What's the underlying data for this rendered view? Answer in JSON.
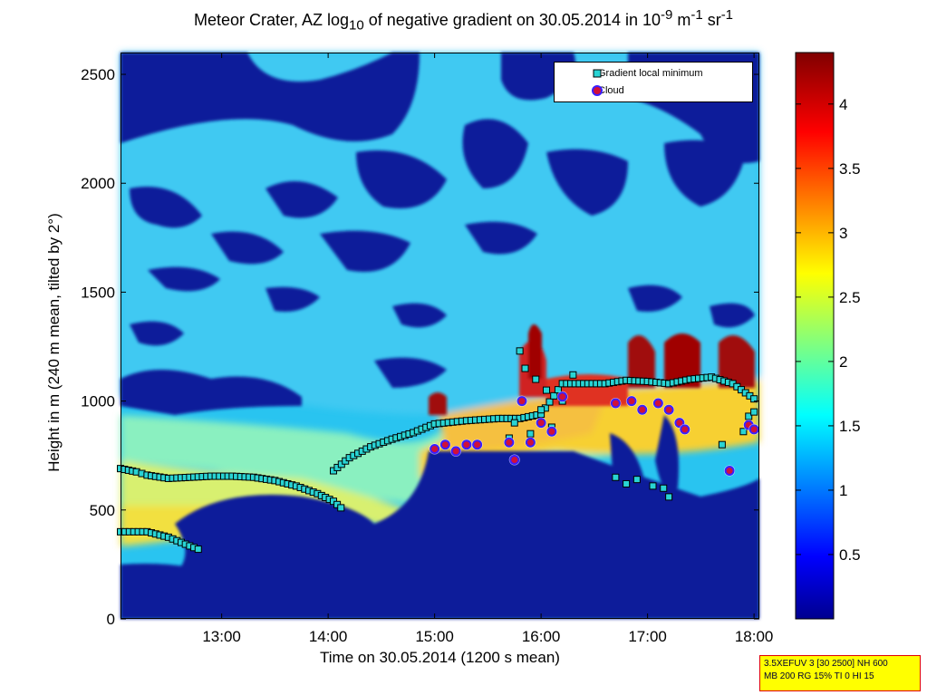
{
  "chart_data": {
    "type": "heatmap",
    "title_main": "Meteor Crater, AZ log",
    "title_sub": "10",
    "title_mid": " of negative gradient on 30.05.2014 in 10",
    "title_sup1": "-9",
    "title_mid2": " m",
    "title_sup2": "-1",
    "title_end": " sr",
    "title_sup3": "-1",
    "xlabel": "Time on 30.05.2014 (1200 s mean)",
    "ylabel": "Height in m (240 m mean, tilted by 2°)",
    "x_range": [
      12.05,
      18.05
    ],
    "y_range": [
      0,
      2600
    ],
    "x_ticks": [
      {
        "v": 13,
        "label": "13:00"
      },
      {
        "v": 14,
        "label": "14:00"
      },
      {
        "v": 15,
        "label": "15:00"
      },
      {
        "v": 16,
        "label": "16:00"
      },
      {
        "v": 17,
        "label": "17:00"
      },
      {
        "v": 18,
        "label": "18:00"
      }
    ],
    "y_ticks": [
      0,
      500,
      1000,
      1500,
      2000,
      2500
    ],
    "colorbar": {
      "range": [
        0,
        4.4
      ],
      "ticks": [
        0.5,
        1,
        1.5,
        2,
        2.5,
        3,
        3.5,
        4
      ],
      "colormap": "jet"
    },
    "legend": {
      "placement": "top-right",
      "entries": [
        {
          "label": "Gradient local minimum",
          "marker": "square",
          "color": "#29d4d4"
        },
        {
          "label": "Cloud",
          "marker": "circle",
          "color": "#d0103a"
        }
      ]
    },
    "series": [
      {
        "marker": "square",
        "segments": [
          [
            [
              12.05,
              690
            ],
            [
              12.2,
              675
            ],
            [
              12.3,
              660
            ],
            [
              12.5,
              645
            ],
            [
              12.7,
              650
            ],
            [
              12.9,
              655
            ],
            [
              13.1,
              655
            ],
            [
              13.3,
              650
            ],
            [
              13.5,
              635
            ],
            [
              13.7,
              610
            ],
            [
              13.9,
              575
            ],
            [
              14.05,
              540
            ],
            [
              14.12,
              510
            ]
          ],
          [
            [
              12.05,
              400
            ],
            [
              12.3,
              400
            ],
            [
              12.5,
              375
            ],
            [
              12.7,
              335
            ],
            [
              12.78,
              320
            ]
          ],
          [
            [
              14.05,
              680
            ],
            [
              14.2,
              740
            ],
            [
              14.4,
              790
            ],
            [
              14.6,
              825
            ],
            [
              14.8,
              855
            ],
            [
              15.0,
              895
            ],
            [
              15.3,
              910
            ],
            [
              15.6,
              920
            ],
            [
              15.8,
              920
            ],
            [
              16.0,
              940
            ],
            [
              16.2,
              1080
            ],
            [
              16.4,
              1080
            ],
            [
              16.6,
              1080
            ],
            [
              16.8,
              1095
            ],
            [
              17.0,
              1090
            ],
            [
              17.2,
              1080
            ],
            [
              17.4,
              1100
            ],
            [
              17.6,
              1110
            ],
            [
              17.8,
              1080
            ],
            [
              18.0,
              1010
            ]
          ]
        ],
        "scatter": [
          [
            15.8,
            1230
          ],
          [
            15.85,
            1150
          ],
          [
            15.95,
            1100
          ],
          [
            16.05,
            1050
          ],
          [
            16.0,
            960
          ],
          [
            15.9,
            850
          ],
          [
            16.1,
            880
          ],
          [
            16.2,
            1000
          ],
          [
            15.75,
            900
          ],
          [
            15.7,
            830
          ],
          [
            16.3,
            1120
          ],
          [
            16.7,
            650
          ],
          [
            16.8,
            620
          ],
          [
            16.9,
            640
          ],
          [
            17.05,
            610
          ],
          [
            17.2,
            560
          ],
          [
            17.15,
            600
          ],
          [
            17.7,
            800
          ],
          [
            17.9,
            860
          ],
          [
            17.95,
            930
          ],
          [
            18.0,
            950
          ]
        ]
      },
      {
        "marker": "circle",
        "values": [
          [
            15.0,
            780
          ],
          [
            15.1,
            800
          ],
          [
            15.2,
            770
          ],
          [
            15.3,
            800
          ],
          [
            15.4,
            800
          ],
          [
            15.7,
            810
          ],
          [
            15.75,
            730
          ],
          [
            15.82,
            1000
          ],
          [
            15.9,
            810
          ],
          [
            16.0,
            900
          ],
          [
            16.1,
            860
          ],
          [
            16.2,
            1020
          ],
          [
            16.7,
            990
          ],
          [
            16.85,
            1000
          ],
          [
            16.95,
            960
          ],
          [
            17.1,
            990
          ],
          [
            17.2,
            960
          ],
          [
            17.3,
            900
          ],
          [
            17.35,
            870
          ],
          [
            17.77,
            680
          ],
          [
            17.95,
            890
          ],
          [
            18.0,
            870
          ]
        ]
      }
    ]
  },
  "info_box": {
    "line1": "3.5XEFUV 3 [30 2500] NH 600",
    "line2": "MB 200 RG 15% TI 0 HI 15"
  }
}
